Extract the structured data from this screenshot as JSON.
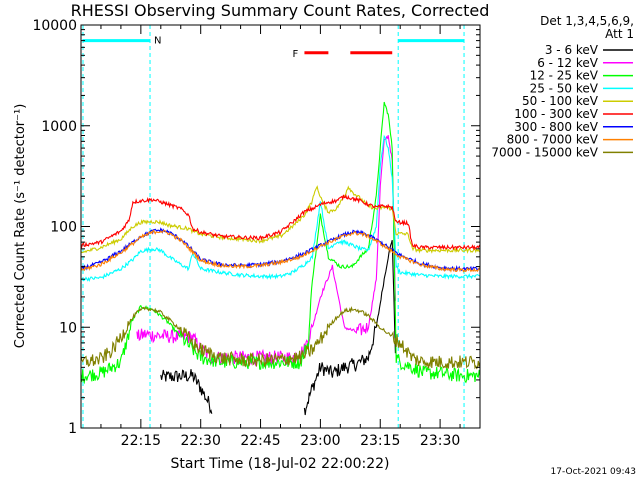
{
  "chart_data": {
    "type": "line",
    "title": "RHESSI Observing Summary Count Rates, Corrected",
    "xlabel": "Start Time (18-Jul-02 22:00:22)",
    "ylabel": "Corrected Count Rate (s⁻¹ detector⁻¹)",
    "y_scale": "log",
    "ylim": [
      1,
      10000
    ],
    "xlim_minutes": [
      0,
      100
    ],
    "x_ticks": [
      {
        "minute": 15,
        "label": "22:15"
      },
      {
        "minute": 30,
        "label": "22:30"
      },
      {
        "minute": 45,
        "label": "22:45"
      },
      {
        "minute": 60,
        "label": "23:00"
      },
      {
        "minute": 75,
        "label": "23:15"
      },
      {
        "minute": 90,
        "label": "23:30"
      }
    ],
    "y_ticks": [
      {
        "value": 1,
        "label": "1"
      },
      {
        "value": 10,
        "label": "10"
      },
      {
        "value": 100,
        "label": "100"
      },
      {
        "value": 1000,
        "label": "1000"
      },
      {
        "value": 10000,
        "label": "10000"
      }
    ],
    "legend_title": [
      "Det 1,3,4,5,6,9,",
      "Att 1"
    ],
    "legend_position": "right",
    "series": [
      {
        "name": "3 - 6 keV",
        "color": "#000000",
        "x": [
          0,
          15,
          20,
          28,
          30,
          33,
          34,
          50,
          54,
          56,
          58,
          60,
          63,
          66,
          69,
          72,
          74,
          76,
          77,
          78,
          79,
          80,
          100
        ],
        "y": [
          null,
          null,
          3.2,
          3.3,
          2.5,
          1.5,
          null,
          null,
          null,
          1.5,
          2.5,
          4,
          3.5,
          4,
          4.3,
          5,
          10,
          30,
          50,
          75,
          3,
          null,
          null
        ]
      },
      {
        "name": "6 - 12 keV",
        "color": "#ff00ff",
        "x": [
          0,
          14,
          16,
          20,
          25,
          28,
          30,
          33,
          50,
          53,
          56,
          58,
          60,
          63,
          66,
          69,
          72,
          74,
          75,
          76,
          77,
          78,
          79,
          80,
          100
        ],
        "y": [
          null,
          8,
          8.5,
          8.2,
          8,
          8,
          6,
          5,
          5,
          5,
          6,
          10,
          20,
          40,
          10,
          9,
          10,
          30,
          250,
          700,
          800,
          450,
          8,
          null,
          null
        ]
      },
      {
        "name": "12 - 25 keV",
        "color": "#00ff00",
        "x": [
          0,
          5,
          10,
          13,
          15,
          18,
          20,
          22,
          25,
          28,
          30,
          35,
          45,
          55,
          57,
          58,
          59,
          60,
          62,
          65,
          68,
          70,
          72,
          74,
          75,
          76,
          77,
          78,
          79,
          80,
          83,
          86,
          90,
          95,
          100
        ],
        "y": [
          3.3,
          3.5,
          4.5,
          12,
          16,
          15,
          13,
          11,
          8,
          6,
          5,
          4.5,
          4.5,
          4.5,
          7,
          30,
          60,
          130,
          50,
          40,
          40,
          50,
          60,
          200,
          600,
          1700,
          1300,
          600,
          5,
          4.5,
          4,
          3.5,
          3.5,
          3.3,
          3.3
        ]
      },
      {
        "name": "25 - 50 keV",
        "color": "#00ffff",
        "x": [
          0,
          5,
          10,
          13,
          15,
          18,
          20,
          22,
          25,
          27,
          28,
          30,
          35,
          40,
          45,
          50,
          53,
          56,
          58,
          60,
          62,
          64,
          66,
          68,
          70,
          72,
          74,
          75,
          76,
          77,
          78,
          79,
          80,
          85,
          90,
          95,
          100
        ],
        "y": [
          30,
          31,
          38,
          47,
          57,
          60,
          58,
          50,
          42,
          38,
          55,
          38,
          35,
          33,
          32,
          32,
          35,
          42,
          50,
          180,
          60,
          70,
          70,
          65,
          60,
          58,
          100,
          400,
          800,
          600,
          300,
          40,
          35,
          33,
          32,
          32,
          32
        ]
      },
      {
        "name": "50 - 100 keV",
        "color": "#cccc00",
        "x": [
          0,
          5,
          10,
          13,
          15,
          18,
          20,
          22,
          25,
          27,
          28,
          30,
          35,
          40,
          45,
          50,
          53,
          56,
          58,
          59,
          60,
          61,
          62,
          64,
          66,
          67,
          68,
          70,
          72,
          74,
          76,
          78,
          79,
          80,
          82,
          83,
          85,
          90,
          95,
          100
        ],
        "y": [
          55,
          62,
          75,
          100,
          110,
          112,
          110,
          103,
          98,
          95,
          90,
          84,
          78,
          75,
          72,
          80,
          100,
          130,
          180,
          250,
          200,
          160,
          140,
          150,
          200,
          250,
          220,
          190,
          160,
          150,
          155,
          150,
          85,
          85,
          84,
          60,
          58,
          58,
          58,
          58
        ]
      },
      {
        "name": "100 - 300 keV",
        "color": "#ff0000",
        "x": [
          0,
          5,
          10,
          12,
          13,
          15,
          18,
          20,
          22,
          25,
          27,
          28,
          30,
          35,
          40,
          45,
          50,
          53,
          56,
          58,
          60,
          62,
          64,
          66,
          68,
          70,
          72,
          74,
          76,
          78,
          79,
          80,
          82,
          83,
          85,
          90,
          95,
          100
        ],
        "y": [
          65,
          70,
          90,
          115,
          175,
          180,
          185,
          175,
          165,
          150,
          130,
          95,
          88,
          80,
          78,
          77,
          88,
          110,
          140,
          150,
          165,
          175,
          180,
          200,
          190,
          180,
          165,
          155,
          160,
          155,
          110,
          110,
          108,
          65,
          62,
          62,
          62,
          62
        ]
      },
      {
        "name": "300 - 800 keV",
        "color": "#0000ff",
        "x": [
          0,
          5,
          10,
          15,
          18,
          20,
          22,
          25,
          28,
          30,
          35,
          40,
          45,
          50,
          55,
          60,
          65,
          68,
          70,
          72,
          75,
          80,
          85,
          90,
          95,
          100
        ],
        "y": [
          38,
          44,
          57,
          80,
          90,
          92,
          88,
          75,
          58,
          47,
          42,
          41,
          42,
          45,
          52,
          65,
          80,
          88,
          87,
          82,
          70,
          52,
          43,
          39,
          38,
          38
        ]
      },
      {
        "name": "800 - 7000 keV",
        "color": "#ff8000",
        "x": [
          0,
          5,
          10,
          15,
          18,
          20,
          22,
          25,
          28,
          30,
          35,
          40,
          45,
          50,
          55,
          60,
          65,
          68,
          70,
          72,
          75,
          80,
          85,
          90,
          95,
          100
        ],
        "y": [
          37,
          42,
          55,
          78,
          88,
          90,
          86,
          73,
          56,
          46,
          41,
          40,
          41,
          44,
          50,
          64,
          78,
          86,
          85,
          80,
          68,
          50,
          42,
          38,
          37,
          37
        ]
      },
      {
        "name": "7000 - 15000 keV",
        "color": "#808000",
        "x": [
          0,
          5,
          8,
          10,
          12,
          14,
          16,
          18,
          20,
          22,
          25,
          28,
          30,
          35,
          40,
          45,
          50,
          55,
          58,
          60,
          62,
          64,
          66,
          68,
          70,
          72,
          75,
          78,
          80,
          83,
          85,
          90,
          95,
          100
        ],
        "y": [
          4.5,
          4.8,
          6,
          8,
          11,
          14,
          15.5,
          15,
          14,
          12,
          9.5,
          7,
          6,
          5,
          4.7,
          4.7,
          4.8,
          5,
          6,
          7.5,
          10,
          12.5,
          14.5,
          15,
          14.5,
          13,
          10,
          8,
          7,
          5,
          4.6,
          4.5,
          4.5,
          4.5
        ]
      }
    ],
    "annotations": {
      "night_label": "N",
      "flare_label": "F",
      "night_intervals": [
        [
          0.5,
          17.3
        ],
        [
          79.5,
          96
        ]
      ],
      "flare_bars": [
        [
          56,
          62
        ],
        [
          67.5,
          78
        ]
      ]
    },
    "timestamp": "17-Oct-2021 09:43"
  }
}
